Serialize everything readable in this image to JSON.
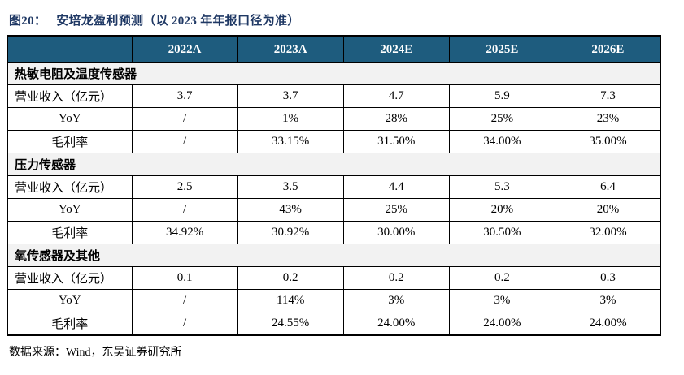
{
  "title": {
    "prefix": "图20：",
    "text": "安培龙盈利预测（以 2023 年年报口径为准）"
  },
  "colors": {
    "header_bg": "#1e5c7e",
    "title_color": "#1f3864",
    "section_bg": "#f2f2f2",
    "border": "#000000"
  },
  "table": {
    "columns": [
      "",
      "2022A",
      "2023A",
      "2024E",
      "2025E",
      "2026E"
    ],
    "sections": [
      {
        "name": "热敏电阻及温度传感器",
        "rows": [
          {
            "label": "营业收入（亿元）",
            "align": "left",
            "values": [
              "3.7",
              "3.7",
              "4.7",
              "5.9",
              "7.3"
            ]
          },
          {
            "label": "YoY",
            "align": "center",
            "values": [
              "/",
              "1%",
              "28%",
              "25%",
              "23%"
            ]
          },
          {
            "label": "毛利率",
            "align": "center",
            "values": [
              "/",
              "33.15%",
              "31.50%",
              "34.00%",
              "35.00%"
            ]
          }
        ]
      },
      {
        "name": "压力传感器",
        "rows": [
          {
            "label": "营业收入（亿元）",
            "align": "left",
            "values": [
              "2.5",
              "3.5",
              "4.4",
              "5.3",
              "6.4"
            ]
          },
          {
            "label": "YoY",
            "align": "center",
            "values": [
              "/",
              "43%",
              "25%",
              "20%",
              "20%"
            ]
          },
          {
            "label": "毛利率",
            "align": "center",
            "values": [
              "34.92%",
              "30.92%",
              "30.00%",
              "30.50%",
              "32.00%"
            ]
          }
        ]
      },
      {
        "name": "氧传感器及其他",
        "rows": [
          {
            "label": "营业收入（亿元）",
            "align": "left",
            "values": [
              "0.1",
              "0.2",
              "0.2",
              "0.2",
              "0.3"
            ]
          },
          {
            "label": "YoY",
            "align": "center",
            "values": [
              "/",
              "114%",
              "3%",
              "3%",
              "3%"
            ]
          },
          {
            "label": "毛利率",
            "align": "center",
            "values": [
              "/",
              "24.55%",
              "24.00%",
              "24.00%",
              "24.00%"
            ]
          }
        ]
      }
    ]
  },
  "footer": {
    "source": "数据来源：Wind，东吴证券研究所"
  }
}
